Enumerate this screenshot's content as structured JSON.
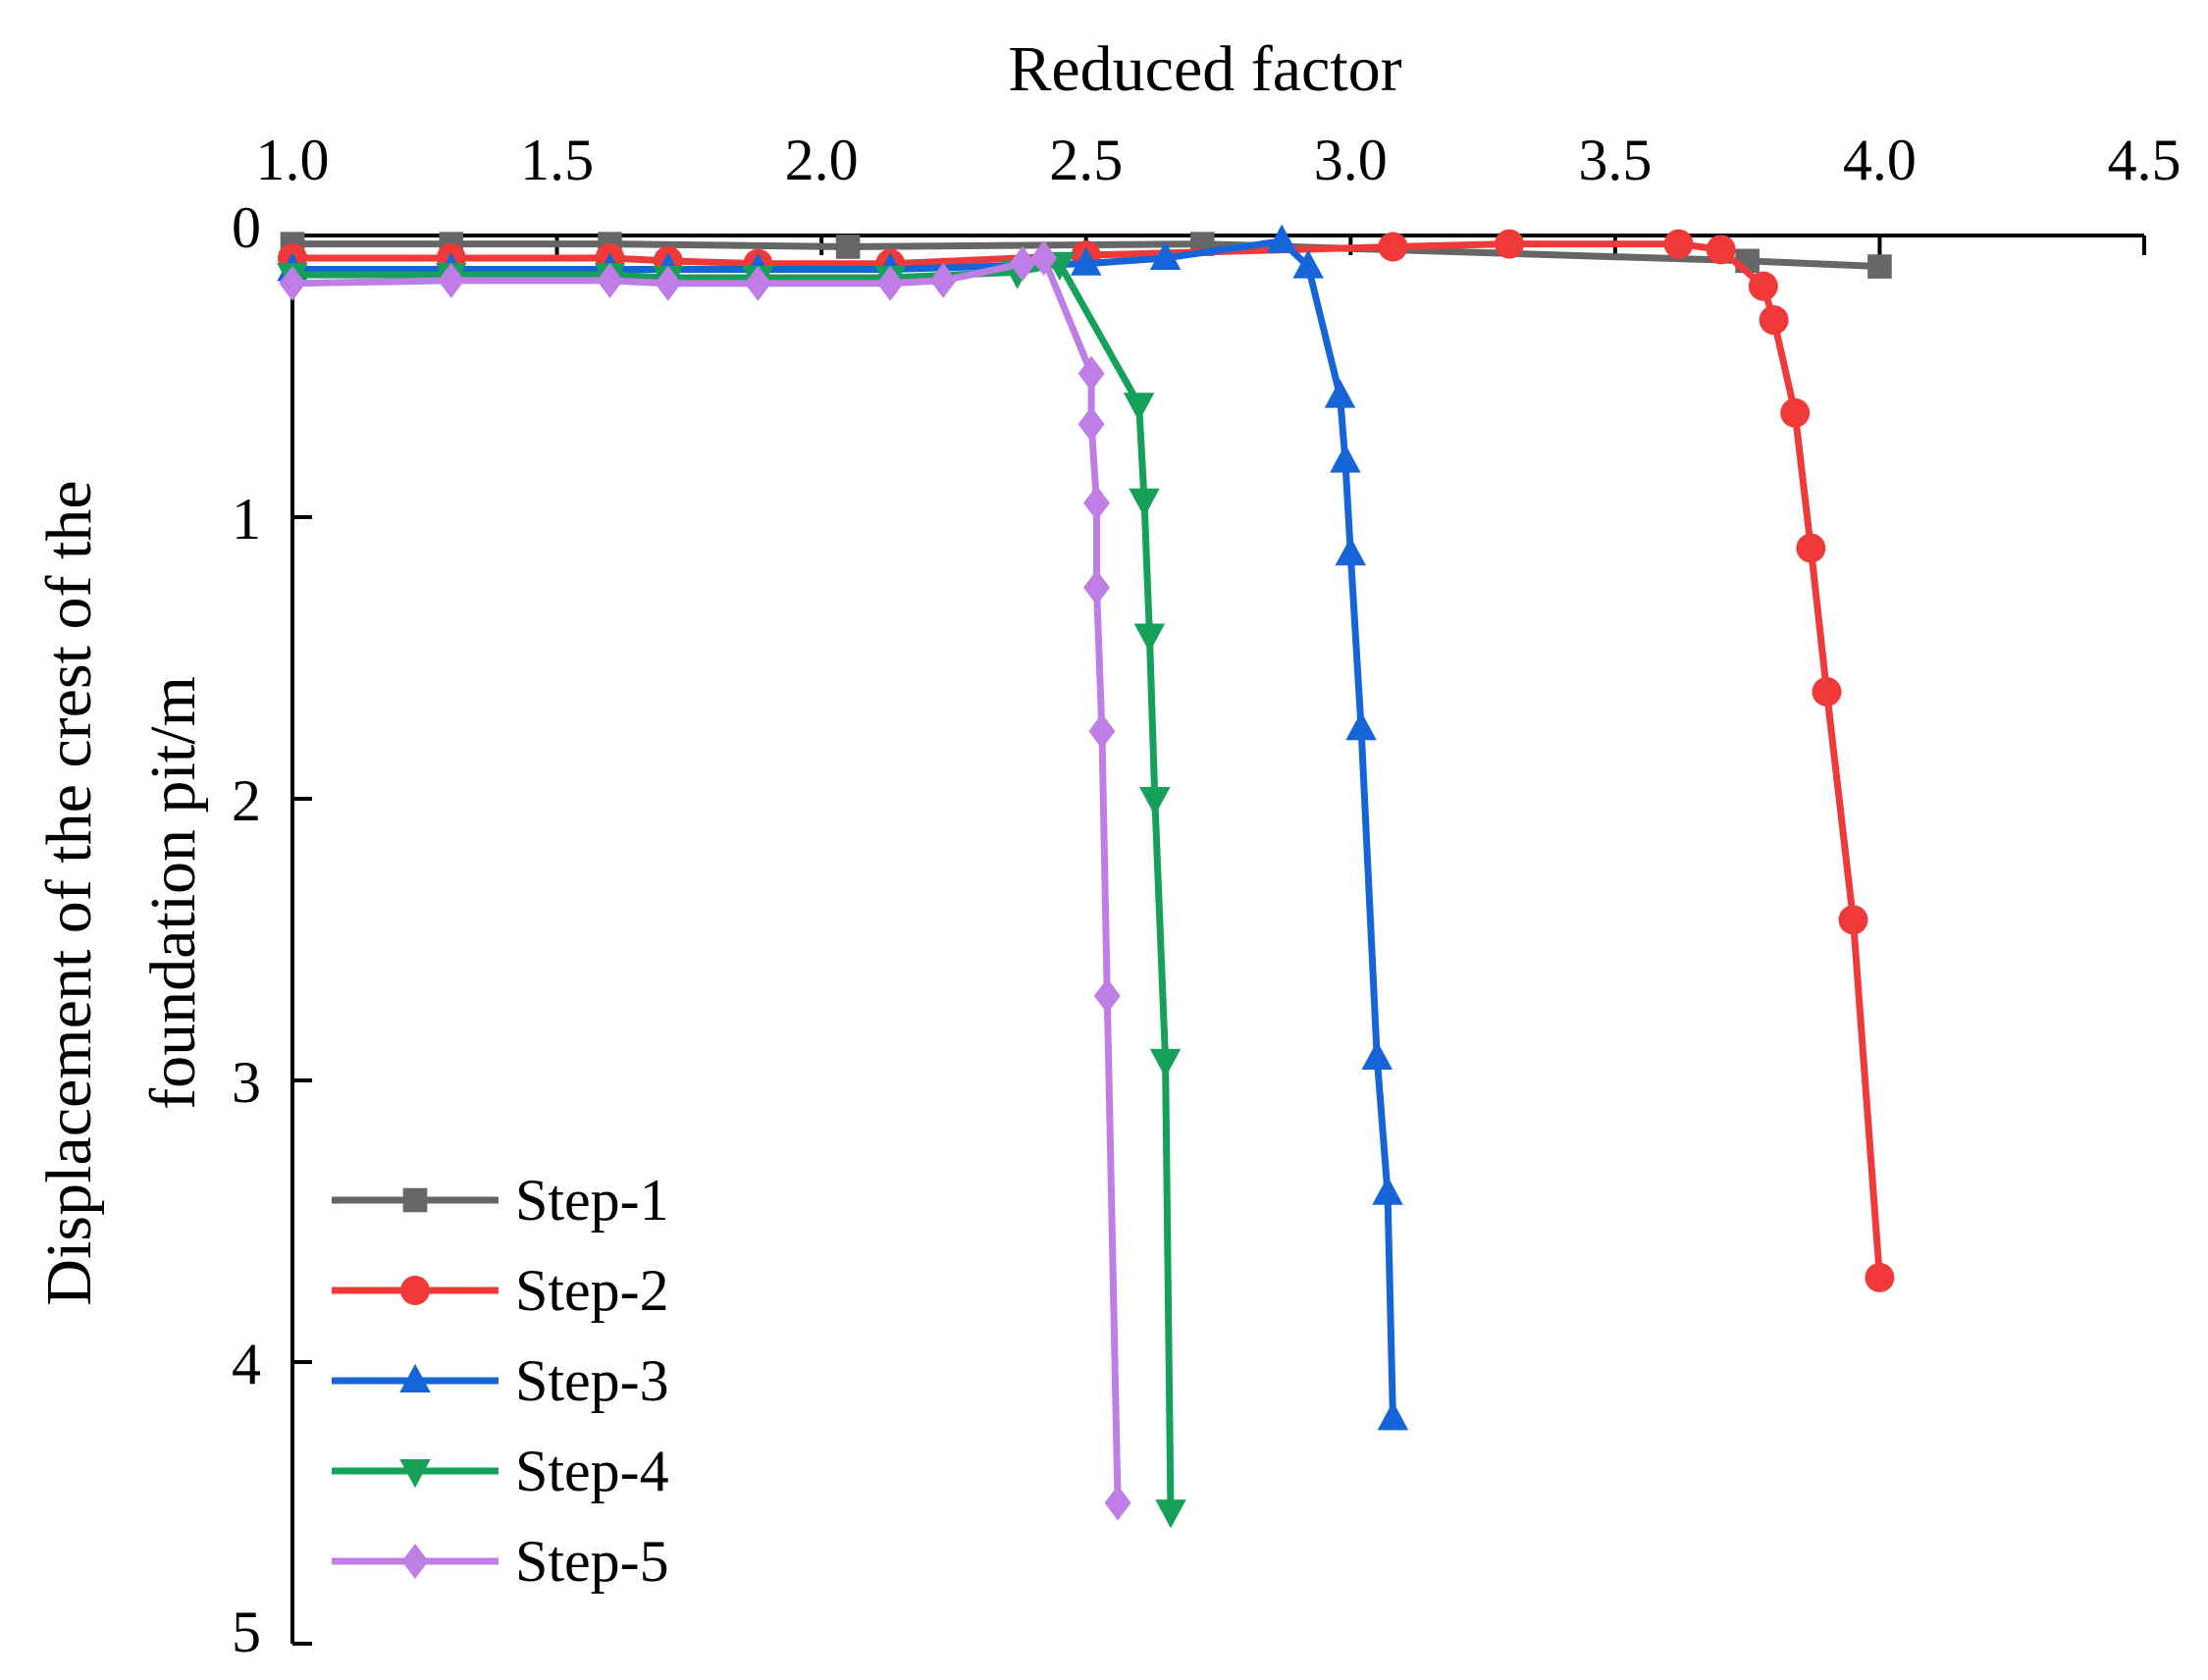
{
  "chart_data": {
    "type": "line",
    "xlabel": "Reduced factor",
    "ylabel_lines": [
      "Displacement of the crest of the",
      "foundation pit/m"
    ],
    "xlim": [
      1.0,
      4.5
    ],
    "ylim": [
      0,
      5
    ],
    "y_inverted": true,
    "x_axis_position": "top",
    "x_ticks": [
      1.0,
      1.5,
      2.0,
      2.5,
      3.0,
      3.5,
      4.0,
      4.5
    ],
    "x_tick_labels": [
      "1.0",
      "1.5",
      "2.0",
      "2.5",
      "3.0",
      "3.5",
      "4.0",
      "4.5"
    ],
    "y_ticks": [
      0,
      1,
      2,
      3,
      4,
      5
    ],
    "y_tick_labels": [
      "0",
      "1",
      "2",
      "3",
      "4",
      "5"
    ],
    "grid": false,
    "legend_position": "bottom-left",
    "series": [
      {
        "name": "Step-1",
        "color": "#666666",
        "marker": "square",
        "x": [
          1.0,
          1.3,
          1.6,
          2.05,
          2.72,
          3.75,
          4.0
        ],
        "y": [
          0.03,
          0.03,
          0.03,
          0.04,
          0.03,
          0.09,
          0.11
        ]
      },
      {
        "name": "Step-2",
        "color": "#f03a3a",
        "marker": "circle",
        "x": [
          1.0,
          1.3,
          1.6,
          1.71,
          1.88,
          2.13,
          2.5,
          3.08,
          3.3,
          3.62,
          3.7,
          3.78,
          3.8,
          3.84,
          3.87,
          3.9,
          3.95,
          4.0
        ],
        "y": [
          0.08,
          0.08,
          0.08,
          0.09,
          0.1,
          0.1,
          0.07,
          0.04,
          0.03,
          0.03,
          0.05,
          0.18,
          0.3,
          0.63,
          1.11,
          1.62,
          2.43,
          3.7
        ]
      },
      {
        "name": "Step-3",
        "color": "#1565d8",
        "marker": "triangle-up",
        "x": [
          1.0,
          1.3,
          1.6,
          1.71,
          1.88,
          2.13,
          2.5,
          2.65,
          2.87,
          2.92,
          2.98,
          2.99,
          3.0,
          3.02,
          3.05,
          3.07,
          3.08
        ],
        "y": [
          0.12,
          0.12,
          0.12,
          0.12,
          0.12,
          0.12,
          0.1,
          0.08,
          0.02,
          0.11,
          0.57,
          0.8,
          1.13,
          1.75,
          2.92,
          3.4,
          4.2
        ]
      },
      {
        "name": "Step-4",
        "color": "#16a05a",
        "marker": "triangle-down",
        "x": [
          1.0,
          1.3,
          1.6,
          1.71,
          1.88,
          2.13,
          2.37,
          2.45,
          2.6,
          2.61,
          2.62,
          2.63,
          2.65,
          2.66
        ],
        "y": [
          0.14,
          0.14,
          0.14,
          0.15,
          0.15,
          0.15,
          0.13,
          0.1,
          0.6,
          0.94,
          1.42,
          2.0,
          2.93,
          4.53
        ]
      },
      {
        "name": "Step-5",
        "color": "#bf7ee6",
        "marker": "diamond",
        "x": [
          1.0,
          1.3,
          1.6,
          1.71,
          1.88,
          2.13,
          2.23,
          2.38,
          2.42,
          2.51,
          2.51,
          2.52,
          2.52,
          2.53,
          2.54,
          2.56
        ],
        "y": [
          0.17,
          0.16,
          0.16,
          0.17,
          0.17,
          0.17,
          0.16,
          0.1,
          0.08,
          0.49,
          0.67,
          0.95,
          1.25,
          1.76,
          2.7,
          4.5
        ]
      }
    ]
  }
}
